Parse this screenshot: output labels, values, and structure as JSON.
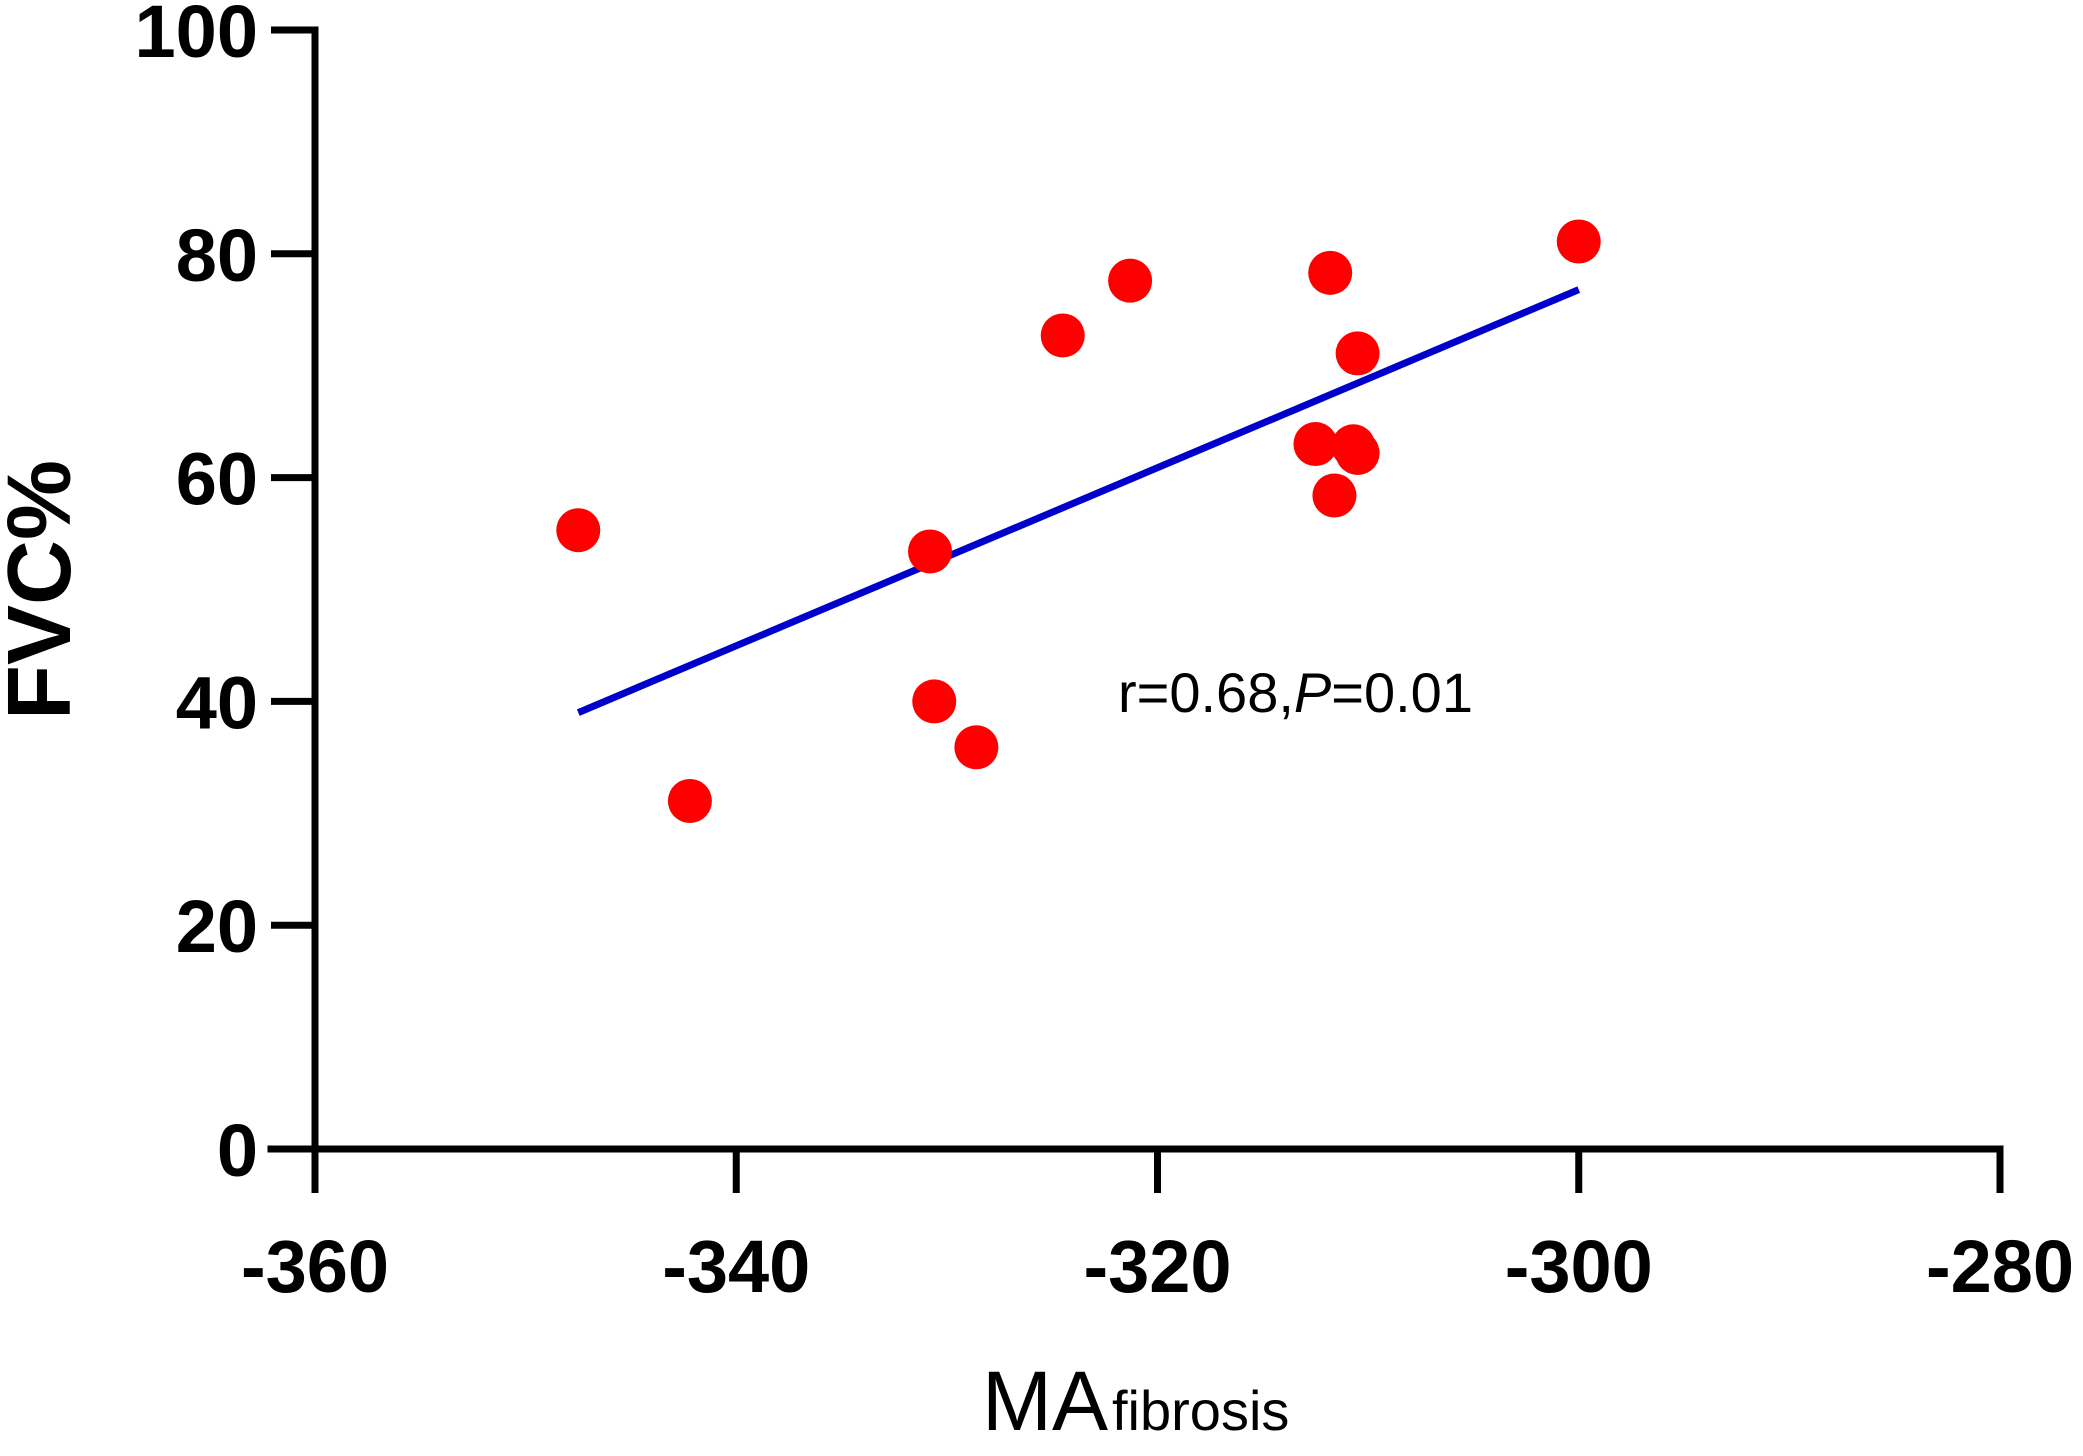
{
  "chart_data": {
    "type": "scatter",
    "title": "",
    "xlabel": {
      "main": "MA",
      "subscript": "fibrosis"
    },
    "ylabel": "FVC%",
    "xlim": [
      -360,
      -280
    ],
    "ylim": [
      0,
      100
    ],
    "xticks": [
      "-360",
      "-340",
      "-320",
      "-300",
      "-280"
    ],
    "yticks": [
      "0",
      "20",
      "40",
      "60",
      "80",
      "100"
    ],
    "xtick_values": [
      -360,
      -340,
      -320,
      -300,
      -280
    ],
    "ytick_values": [
      0,
      20,
      40,
      60,
      80,
      100
    ],
    "grid": false,
    "points": [
      {
        "x": -347.5,
        "y": 55.3
      },
      {
        "x": -342.2,
        "y": 31.1
      },
      {
        "x": -330.8,
        "y": 53.4
      },
      {
        "x": -330.6,
        "y": 40.0
      },
      {
        "x": -328.6,
        "y": 35.9
      },
      {
        "x": -324.5,
        "y": 72.7
      },
      {
        "x": -321.3,
        "y": 77.6
      },
      {
        "x": -312.5,
        "y": 63.0
      },
      {
        "x": -311.8,
        "y": 78.3
      },
      {
        "x": -311.6,
        "y": 58.4
      },
      {
        "x": -310.5,
        "y": 71.1
      },
      {
        "x": -310.7,
        "y": 62.8
      },
      {
        "x": -310.5,
        "y": 62.2
      },
      {
        "x": -300.0,
        "y": 81.1
      }
    ],
    "regression_line": {
      "x": [
        -347.5,
        -300.0
      ],
      "y": [
        39.0,
        76.8
      ]
    },
    "annotation": {
      "r_text": "r=0.68,",
      "p_symbol": "P",
      "p_text": "=0.01"
    },
    "colors": {
      "points": "#ff0000",
      "line": "#0000cc",
      "axes": "#000000"
    }
  }
}
